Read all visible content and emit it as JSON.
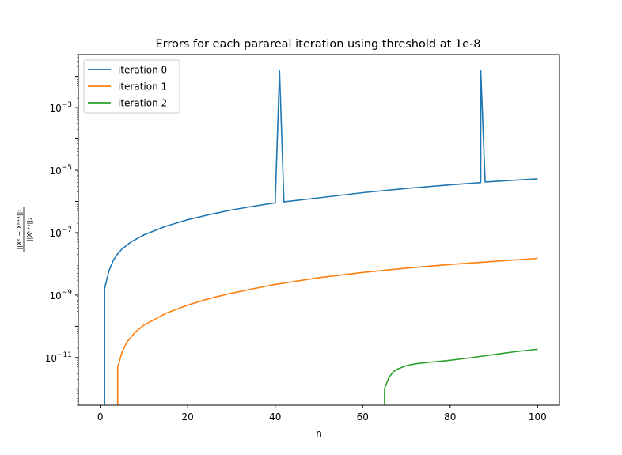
{
  "chart_data": {
    "type": "line",
    "title": "Errors for each parareal iteration using threshold at 1e-8",
    "xlabel": "n",
    "ylabel": "‖Xᵏ − Xᵏ⁺¹‖₂ / ‖Xᵏ⁺¹‖₂",
    "ylabel_numerator": "||Xᵏ − Xᵏ⁺¹||₂",
    "ylabel_denominator": "||Xᵏ⁺¹||₂",
    "xlim": [
      -5,
      105
    ],
    "ylim": [
      3e-13,
      0.05
    ],
    "yscale": "log",
    "grid": false,
    "legend_position": "top-left",
    "x_ticks": [
      0,
      20,
      40,
      60,
      80,
      100
    ],
    "x_tick_labels": [
      "0",
      "20",
      "40",
      "60",
      "80",
      "100"
    ],
    "y_ticks": [
      1e-11,
      1e-09,
      1e-07,
      1e-05,
      0.001
    ],
    "y_tick_labels": [
      {
        "base": "10",
        "exp": "−11"
      },
      {
        "base": "10",
        "exp": "−9"
      },
      {
        "base": "10",
        "exp": "−7"
      },
      {
        "base": "10",
        "exp": "−5"
      },
      {
        "base": "10",
        "exp": "−3"
      }
    ],
    "series": [
      {
        "name": "iteration 0",
        "color": "#1f77b4",
        "points": [
          [
            1,
            3e-13
          ],
          [
            1,
            1.6e-09
          ],
          [
            2,
            6e-09
          ],
          [
            3,
            1.3e-08
          ],
          [
            4,
            2.1e-08
          ],
          [
            5,
            3e-08
          ],
          [
            7,
            5e-08
          ],
          [
            10,
            8.5e-08
          ],
          [
            15,
            1.6e-07
          ],
          [
            20,
            2.6e-07
          ],
          [
            25,
            3.8e-07
          ],
          [
            30,
            5.3e-07
          ],
          [
            35,
            7e-07
          ],
          [
            40,
            9e-07
          ],
          [
            41,
            0.015
          ],
          [
            42,
            9.7e-07
          ],
          [
            50,
            1.3e-06
          ],
          [
            60,
            1.9e-06
          ],
          [
            70,
            2.6e-06
          ],
          [
            80,
            3.4e-06
          ],
          [
            87,
            4e-06
          ],
          [
            87,
            0.015
          ],
          [
            88,
            4.2e-06
          ],
          [
            95,
            4.8e-06
          ],
          [
            100,
            5.3e-06
          ]
        ]
      },
      {
        "name": "iteration 1",
        "color": "#ff7f0e",
        "points": [
          [
            4,
            3e-13
          ],
          [
            4,
            5e-12
          ],
          [
            5,
            1.5e-11
          ],
          [
            6,
            3e-11
          ],
          [
            8,
            6.5e-11
          ],
          [
            10,
            1.1e-10
          ],
          [
            15,
            2.6e-10
          ],
          [
            20,
            4.8e-10
          ],
          [
            25,
            7.8e-10
          ],
          [
            30,
            1.15e-09
          ],
          [
            35,
            1.6e-09
          ],
          [
            40,
            2.2e-09
          ],
          [
            50,
            3.6e-09
          ],
          [
            60,
            5.3e-09
          ],
          [
            70,
            7.3e-09
          ],
          [
            80,
            9.6e-09
          ],
          [
            90,
            1.2e-08
          ],
          [
            100,
            1.5e-08
          ]
        ]
      },
      {
        "name": "iteration 2",
        "color": "#2ca02c",
        "points": [
          [
            65,
            3e-13
          ],
          [
            65,
            1e-12
          ],
          [
            66,
            2.3e-12
          ],
          [
            67,
            3.5e-12
          ],
          [
            68,
            4.3e-12
          ],
          [
            70,
            5.5e-12
          ],
          [
            72,
            6.3e-12
          ],
          [
            75,
            7e-12
          ],
          [
            80,
            8.2e-12
          ],
          [
            85,
            1e-11
          ],
          [
            90,
            1.25e-11
          ],
          [
            95,
            1.55e-11
          ],
          [
            100,
            1.85e-11
          ]
        ]
      }
    ]
  }
}
